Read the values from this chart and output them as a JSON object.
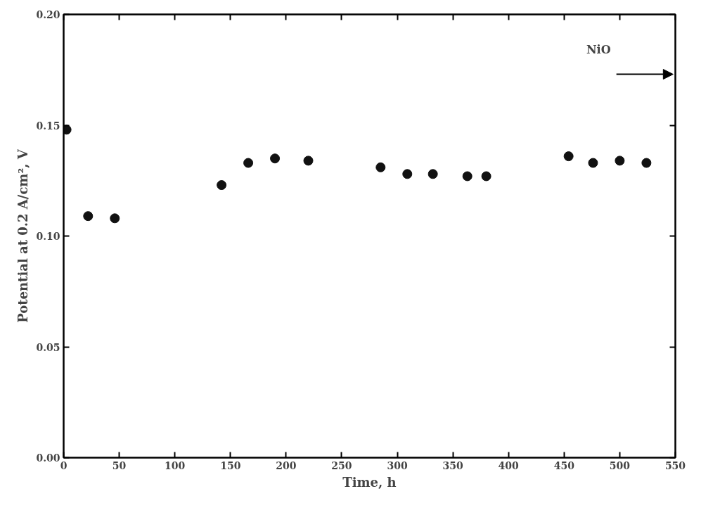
{
  "chart_data": {
    "type": "scatter",
    "xlabel": "Time, h",
    "ylabel": "Potential at 0.2 A/cm², V",
    "x": [
      2.6,
      22,
      46,
      142,
      166,
      190,
      220,
      285,
      309,
      332,
      363,
      380,
      454,
      476,
      500,
      524
    ],
    "series": [
      {
        "color": "#111111",
        "values": [
          0.148,
          0.109,
          0.108,
          0.123,
          0.133,
          0.135,
          0.134,
          0.131,
          0.128,
          0.128,
          0.127,
          0.127,
          0.136,
          0.133,
          0.134,
          0.133
        ]
      }
    ],
    "xlim": [
      0,
      550
    ],
    "ylim": [
      0,
      0.2
    ],
    "xticks": [
      0,
      50,
      100,
      150,
      200,
      250,
      300,
      350,
      400,
      450,
      500,
      550
    ],
    "yticks": [
      {
        "value": 0,
        "label": "0.00"
      },
      {
        "value": 0.05,
        "label": "0.05"
      },
      {
        "value": 0.1,
        "label": "0.10"
      },
      {
        "value": 0.15,
        "label": "0.15"
      },
      {
        "value": 0.2,
        "label": "0.20"
      }
    ],
    "annotations": [
      "NiO"
    ],
    "marker": "circle",
    "grid": false
  }
}
